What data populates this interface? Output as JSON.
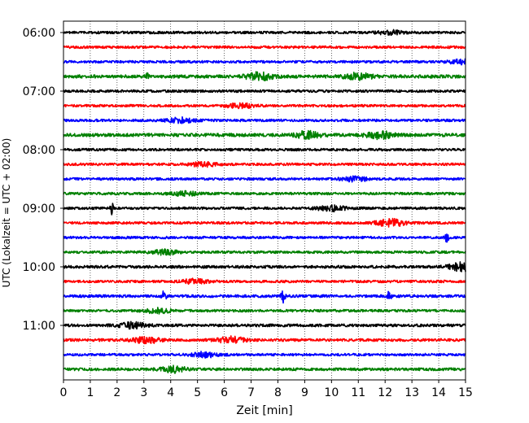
{
  "chart_data": {
    "type": "line",
    "title": "",
    "xlabel": "Zeit  [min]",
    "ylabel": "UTC (Lokalzeit = UTC + 02:00)",
    "xlim": [
      0,
      15
    ],
    "x_ticks": [
      "0",
      "1",
      "2",
      "3",
      "4",
      "5",
      "6",
      "7",
      "8",
      "9",
      "10",
      "11",
      "12",
      "13",
      "14",
      "15"
    ],
    "y_ticks": [
      "06:00",
      "07:00",
      "08:00",
      "09:00",
      "10:00",
      "11:00"
    ],
    "trace_interval_minutes": 15,
    "start_time": "06:00",
    "grid": "vertical-dotted",
    "colors": [
      "#000000",
      "#ff0000",
      "#0000ff",
      "#008000"
    ],
    "traces": [
      {
        "label": "06:00",
        "amplitude": 1.0,
        "events": [
          {
            "t": 12.2,
            "amp": 1.4
          }
        ]
      },
      {
        "label": "06:15",
        "amplitude": 1.0,
        "events": []
      },
      {
        "label": "06:30",
        "amplitude": 1.0,
        "events": [
          {
            "t": 14.9,
            "amp": 1.6
          }
        ]
      },
      {
        "label": "06:45",
        "amplitude": 1.3,
        "events": [
          {
            "t": 3.1,
            "amp": 3.2
          },
          {
            "t": 7.3,
            "amp": 2.6
          },
          {
            "t": 11.0,
            "amp": 2.2
          }
        ]
      },
      {
        "label": "07:00",
        "amplitude": 1.0,
        "events": []
      },
      {
        "label": "07:15",
        "amplitude": 1.0,
        "events": [
          {
            "t": 6.6,
            "amp": 1.6
          }
        ]
      },
      {
        "label": "07:30",
        "amplitude": 1.0,
        "events": [
          {
            "t": 4.4,
            "amp": 1.8
          }
        ]
      },
      {
        "label": "07:45",
        "amplitude": 1.3,
        "events": [
          {
            "t": 9.1,
            "amp": 2.4
          },
          {
            "t": 11.8,
            "amp": 2.4
          }
        ]
      },
      {
        "label": "08:00",
        "amplitude": 1.0,
        "events": []
      },
      {
        "label": "08:15",
        "amplitude": 1.0,
        "events": [
          {
            "t": 5.2,
            "amp": 1.5
          }
        ]
      },
      {
        "label": "08:30",
        "amplitude": 1.0,
        "events": [
          {
            "t": 10.9,
            "amp": 1.6
          }
        ]
      },
      {
        "label": "08:45",
        "amplitude": 1.0,
        "events": [
          {
            "t": 4.5,
            "amp": 1.5
          }
        ]
      },
      {
        "label": "09:00",
        "amplitude": 1.0,
        "events": [
          {
            "t": 1.8,
            "amp": 4.8
          },
          {
            "t": 10.0,
            "amp": 2.0
          }
        ]
      },
      {
        "label": "09:15",
        "amplitude": 1.0,
        "events": [
          {
            "t": 12.2,
            "amp": 2.8
          }
        ]
      },
      {
        "label": "09:30",
        "amplitude": 1.0,
        "events": [
          {
            "t": 14.3,
            "amp": 5.0
          }
        ]
      },
      {
        "label": "09:45",
        "amplitude": 1.0,
        "events": [
          {
            "t": 3.8,
            "amp": 1.6
          }
        ]
      },
      {
        "label": "10:00",
        "amplitude": 1.1,
        "events": [
          {
            "t": 14.9,
            "amp": 3.0
          }
        ]
      },
      {
        "label": "10:15",
        "amplitude": 1.0,
        "events": [
          {
            "t": 4.9,
            "amp": 1.6
          }
        ]
      },
      {
        "label": "10:30",
        "amplitude": 1.1,
        "events": [
          {
            "t": 3.75,
            "amp": 5.2
          },
          {
            "t": 8.2,
            "amp": 5.0
          },
          {
            "t": 12.15,
            "amp": 4.8
          }
        ]
      },
      {
        "label": "10:45",
        "amplitude": 1.0,
        "events": [
          {
            "t": 3.5,
            "amp": 1.6
          }
        ]
      },
      {
        "label": "11:00",
        "amplitude": 1.1,
        "events": [
          {
            "t": 2.6,
            "amp": 2.0
          }
        ]
      },
      {
        "label": "11:15",
        "amplitude": 1.1,
        "events": [
          {
            "t": 3.1,
            "amp": 2.2
          },
          {
            "t": 6.25,
            "amp": 2.2
          }
        ]
      },
      {
        "label": "11:30",
        "amplitude": 1.0,
        "events": [
          {
            "t": 5.25,
            "amp": 1.8
          }
        ]
      },
      {
        "label": "11:45",
        "amplitude": 1.1,
        "events": [
          {
            "t": 4.1,
            "amp": 2.0
          }
        ]
      }
    ]
  }
}
